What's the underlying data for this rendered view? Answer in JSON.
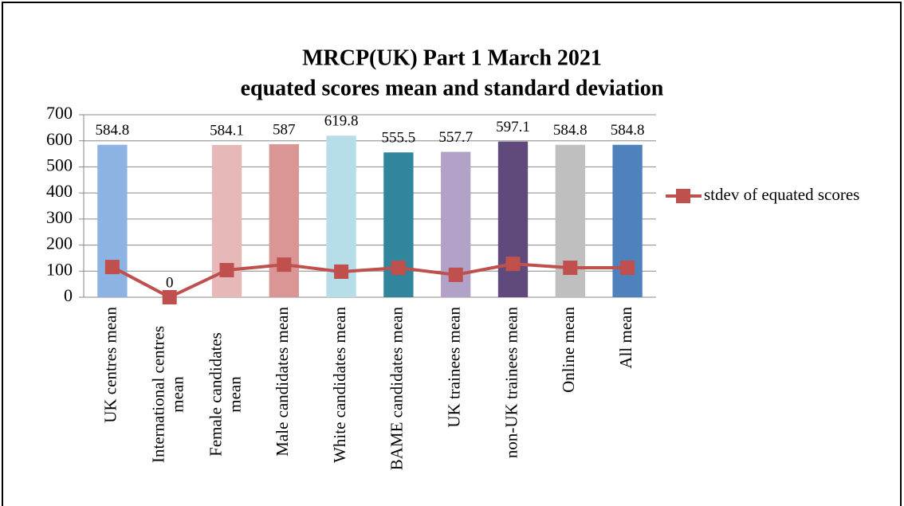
{
  "chart_data": {
    "type": "bar",
    "title": "MRCP(UK) Part 1 March 2021",
    "subtitle": "equated scores mean and standard deviation",
    "categories": [
      "UK centres mean",
      "International centres mean",
      "Female candidates mean",
      "Male candidates mean",
      "White candidates mean",
      "BAME candidates mean",
      "UK trainees mean",
      "non-UK trainees mean",
      "Online mean",
      "All mean"
    ],
    "series": [
      {
        "type": "bar",
        "values": [
          584.8,
          0,
          584.1,
          587,
          619.8,
          555.5,
          557.7,
          597.1,
          584.8,
          584.8
        ],
        "colors": [
          "#8db3e2",
          "#4f81bd",
          "#e6b9b8",
          "#d99694",
          "#b7dee8",
          "#31859c",
          "#b3a2c7",
          "#604a7b",
          "#bfbfbf",
          "#4f81bd"
        ]
      },
      {
        "type": "line",
        "name": "stdev of equated scores",
        "color": "#c0504d",
        "values": [
          116,
          0,
          104,
          125,
          98,
          113,
          86,
          128,
          113,
          113
        ]
      }
    ],
    "ylim": [
      0,
      700
    ],
    "yticks": [
      0,
      100,
      200,
      300,
      400,
      500,
      600,
      700
    ],
    "grid": true,
    "legend": "right"
  }
}
